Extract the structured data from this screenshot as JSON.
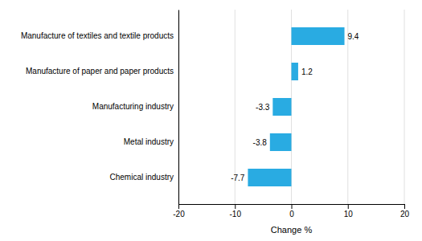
{
  "chart_data": {
    "type": "bar",
    "orientation": "horizontal",
    "categories": [
      "Chemical industry",
      "Metal industry",
      "Manufacturing industry",
      "Manufacture of paper and paper products",
      "Manufacture of textiles and textile products"
    ],
    "values": [
      -7.7,
      -3.8,
      -3.3,
      1.2,
      9.4
    ],
    "color": "#29abe2",
    "xlabel": "Change %",
    "xlim": [
      -20,
      20
    ],
    "xticks": [
      -20,
      -10,
      0,
      10,
      20
    ],
    "grid": true,
    "data_labels": true
  }
}
